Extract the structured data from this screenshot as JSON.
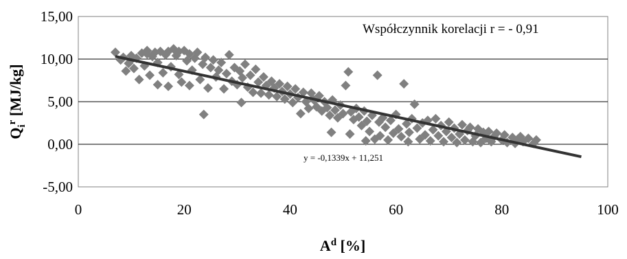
{
  "chart_data": {
    "type": "scatter",
    "title": "",
    "xlabel": {
      "main": "A",
      "sup": "d",
      "rest": " [%]"
    },
    "ylabel": {
      "main": "Q",
      "sub": "i",
      "sup": "r",
      "rest": " [MJ/kg]"
    },
    "xlim": [
      0,
      100
    ],
    "ylim": [
      -5,
      15
    ],
    "x_ticks": [
      "0",
      "20",
      "40",
      "60",
      "80",
      "100"
    ],
    "y_ticks": [
      "-5,00",
      "0,00",
      "5,00",
      "10,00",
      "15,00"
    ],
    "grid": "horizontal",
    "legend": "none",
    "marker_color": "#808080",
    "trend_color": "#333333",
    "correlation_label": "Współczynnik korelacji r = - 0,91",
    "trendline": {
      "slope": -0.1339,
      "intercept": 11.251,
      "x_range": [
        7,
        95
      ],
      "label": "y = -0,1339x + 11,251"
    },
    "series": [
      {
        "values": [
          [
            7,
            10.8
          ],
          [
            8,
            9.9
          ],
          [
            8.5,
            10.2
          ],
          [
            9,
            8.6
          ],
          [
            9.5,
            9.5
          ],
          [
            10,
            9.9
          ],
          [
            10,
            10.4
          ],
          [
            10.5,
            8.9
          ],
          [
            11,
            10.1
          ],
          [
            11.5,
            7.6
          ],
          [
            12,
            10.7
          ],
          [
            12.5,
            9.2
          ],
          [
            13,
            10.6
          ],
          [
            13,
            11.0
          ],
          [
            13.5,
            8.1
          ],
          [
            14,
            10.3
          ],
          [
            14.5,
            10.8
          ],
          [
            15,
            9.6
          ],
          [
            15,
            7.0
          ],
          [
            15.5,
            10.9
          ],
          [
            16,
            8.4
          ],
          [
            16.5,
            10.5
          ],
          [
            17,
            10.9
          ],
          [
            17,
            6.8
          ],
          [
            17.5,
            9.1
          ],
          [
            18,
            11.2
          ],
          [
            18.5,
            10.4
          ],
          [
            19,
            8.2
          ],
          [
            19,
            10.9
          ],
          [
            19.5,
            7.3
          ],
          [
            20,
            11.0
          ],
          [
            20.5,
            9.8
          ],
          [
            21,
            10.6
          ],
          [
            21,
            6.9
          ],
          [
            21.5,
            8.7
          ],
          [
            22,
            10.1
          ],
          [
            22.5,
            10.8
          ],
          [
            23,
            7.6
          ],
          [
            23.5,
            9.4
          ],
          [
            23.7,
            3.5
          ],
          [
            24,
            10.2
          ],
          [
            24.5,
            6.6
          ],
          [
            25,
            9.0
          ],
          [
            25.5,
            9.9
          ],
          [
            26,
            7.9
          ],
          [
            26.5,
            8.7
          ],
          [
            27,
            9.6
          ],
          [
            27.5,
            6.5
          ],
          [
            28,
            8.3
          ],
          [
            28.5,
            10.5
          ],
          [
            29,
            7.4
          ],
          [
            29.5,
            9.0
          ],
          [
            30,
            7.0
          ],
          [
            30.5,
            8.6
          ],
          [
            30.8,
            4.9
          ],
          [
            31,
            7.8
          ],
          [
            31.5,
            9.4
          ],
          [
            32,
            6.7
          ],
          [
            32.5,
            8.1
          ],
          [
            33,
            6.1
          ],
          [
            33.5,
            8.8
          ],
          [
            34,
            7.3
          ],
          [
            34.5,
            6.0
          ],
          [
            35,
            7.9
          ],
          [
            35.5,
            6.9
          ],
          [
            36,
            5.8
          ],
          [
            36.5,
            7.4
          ],
          [
            37,
            6.6
          ],
          [
            37.5,
            5.6
          ],
          [
            38,
            7.1
          ],
          [
            38.5,
            6.2
          ],
          [
            39,
            5.3
          ],
          [
            39.5,
            6.8
          ],
          [
            40,
            5.9
          ],
          [
            40.5,
            4.9
          ],
          [
            41,
            6.5
          ],
          [
            41.5,
            5.5
          ],
          [
            42,
            3.6
          ],
          [
            42.5,
            6.1
          ],
          [
            43,
            5.0
          ],
          [
            43.5,
            4.2
          ],
          [
            44,
            6.0
          ],
          [
            44.5,
            5.2
          ],
          [
            45,
            4.4
          ],
          [
            45.5,
            5.7
          ],
          [
            46,
            3.9
          ],
          [
            46.5,
            5.0
          ],
          [
            47,
            4.3
          ],
          [
            47.5,
            3.4
          ],
          [
            47.8,
            1.4
          ],
          [
            48,
            5.2
          ],
          [
            48.5,
            4.0
          ],
          [
            49,
            3.1
          ],
          [
            49.5,
            4.6
          ],
          [
            50,
            3.6
          ],
          [
            50.5,
            6.9
          ],
          [
            51,
            8.5
          ],
          [
            51.3,
            1.2
          ],
          [
            51.5,
            3.8
          ],
          [
            52,
            2.9
          ],
          [
            52.5,
            4.2
          ],
          [
            53,
            3.2
          ],
          [
            53.5,
            2.2
          ],
          [
            54,
            3.9
          ],
          [
            54.3,
            0.4
          ],
          [
            54.5,
            2.7
          ],
          [
            55,
            1.5
          ],
          [
            55.5,
            3.4
          ],
          [
            56,
            0.6
          ],
          [
            56.5,
            8.1
          ],
          [
            56.8,
            2.6
          ],
          [
            57,
            1.0
          ],
          [
            57.5,
            3.1
          ],
          [
            58,
            2.0
          ],
          [
            58.5,
            0.5
          ],
          [
            59,
            2.8
          ],
          [
            59.5,
            1.3
          ],
          [
            60,
            3.5
          ],
          [
            60.5,
            1.8
          ],
          [
            61,
            0.9
          ],
          [
            61.5,
            7.1
          ],
          [
            62,
            2.4
          ],
          [
            62.3,
            0.3
          ],
          [
            62.5,
            1.4
          ],
          [
            63,
            3.0
          ],
          [
            63.5,
            4.7
          ],
          [
            64,
            1.9
          ],
          [
            64.5,
            0.6
          ],
          [
            65,
            2.5
          ],
          [
            65.5,
            1.1
          ],
          [
            66,
            2.8
          ],
          [
            66.5,
            0.4
          ],
          [
            67,
            1.7
          ],
          [
            67.5,
            3.0
          ],
          [
            68,
            1.0
          ],
          [
            68.5,
            2.2
          ],
          [
            69,
            0.3
          ],
          [
            69.5,
            1.5
          ],
          [
            70,
            2.6
          ],
          [
            70.5,
            0.8
          ],
          [
            71,
            1.9
          ],
          [
            71.5,
            0.2
          ],
          [
            72,
            1.2
          ],
          [
            72.5,
            2.3
          ],
          [
            73,
            0.5
          ],
          [
            73.5,
            1.6
          ],
          [
            74,
            2.0
          ],
          [
            74.5,
            0.3
          ],
          [
            75,
            1.0
          ],
          [
            75.5,
            1.8
          ],
          [
            76,
            0.2
          ],
          [
            76.5,
            1.4
          ],
          [
            77,
            0.7
          ],
          [
            77.5,
            1.5
          ],
          [
            78,
            0.3
          ],
          [
            78.5,
            0.9
          ],
          [
            79,
            1.3
          ],
          [
            80,
            0.5
          ],
          [
            80.5,
            1.1
          ],
          [
            81,
            0.2
          ],
          [
            82,
            0.8
          ],
          [
            82.5,
            0.1
          ],
          [
            83,
            0.6
          ],
          [
            83.5,
            0.9
          ],
          [
            84,
            0.3
          ],
          [
            85,
            0.7
          ],
          [
            86,
            0.1
          ],
          [
            86.5,
            0.5
          ]
        ]
      }
    ]
  }
}
